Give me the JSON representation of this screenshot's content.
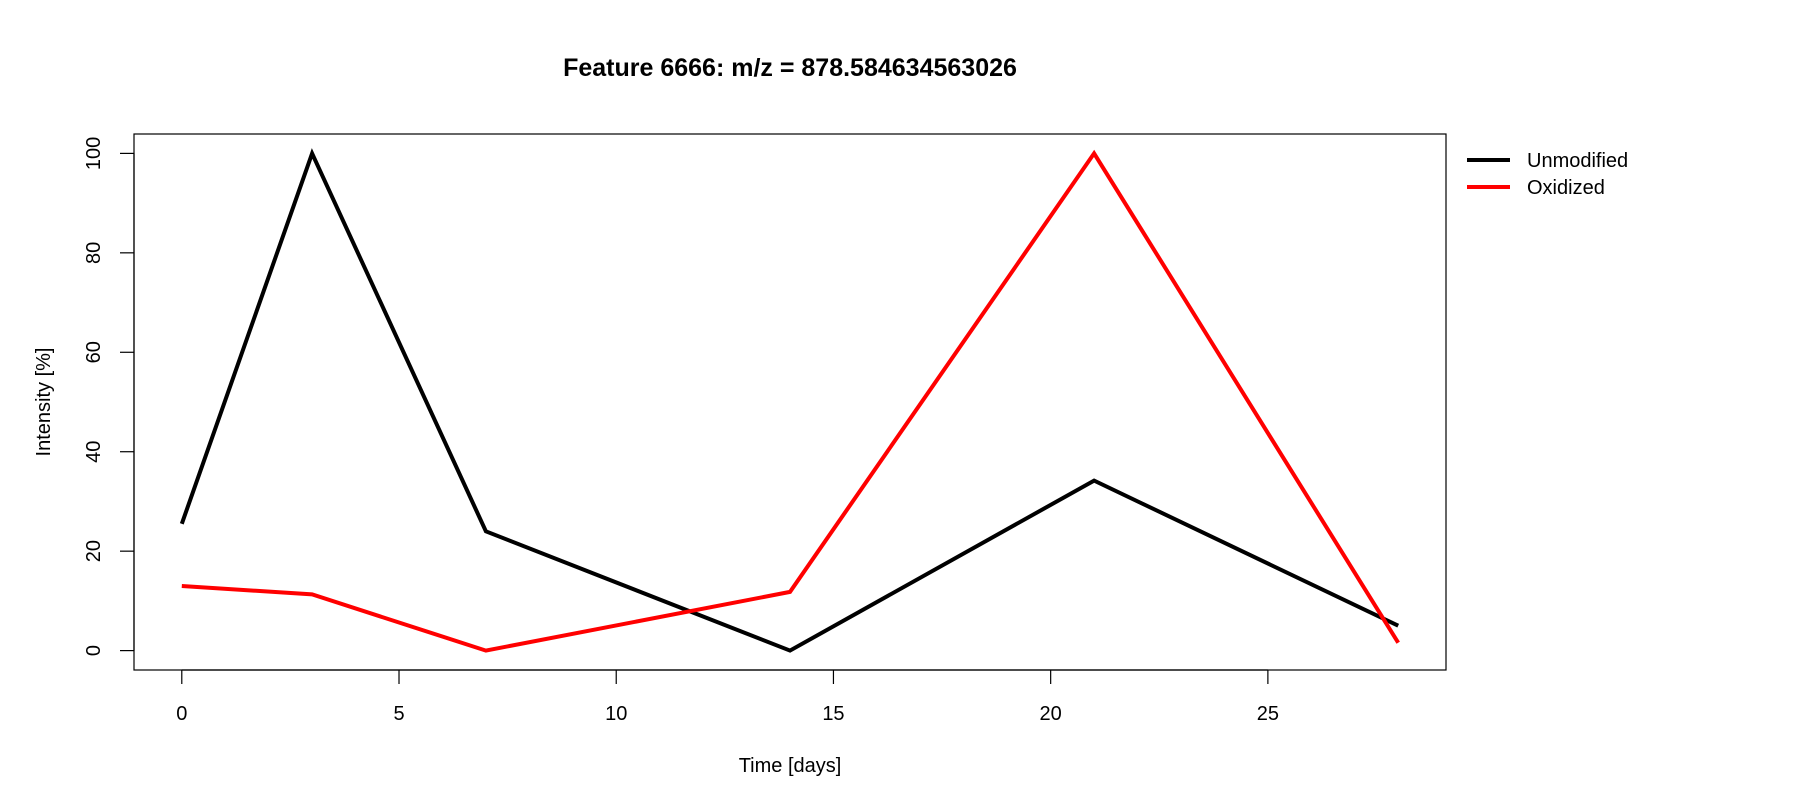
{
  "chart_data": {
    "type": "line",
    "title": "Feature 6666: m/z = 878.584634563026",
    "xlabel": "Time [days]",
    "ylabel": "Intensity [%]",
    "x": [
      0,
      3,
      7,
      14,
      21,
      28
    ],
    "xticks": [
      0,
      5,
      10,
      15,
      20,
      25
    ],
    "yticks": [
      0,
      20,
      40,
      60,
      80,
      100
    ],
    "xlim": [
      -1.1,
      29.1
    ],
    "ylim": [
      -3.9,
      103.9
    ],
    "grid": false,
    "legend_position": "top-right outside plot",
    "series": [
      {
        "name": "Unmodified",
        "color": "#000000",
        "values": [
          25.5,
          100,
          24,
          0,
          34.2,
          5
        ]
      },
      {
        "name": "Oxidized",
        "color": "#ff0000",
        "values": [
          13,
          11.3,
          0,
          11.8,
          100,
          1.6
        ]
      }
    ]
  }
}
